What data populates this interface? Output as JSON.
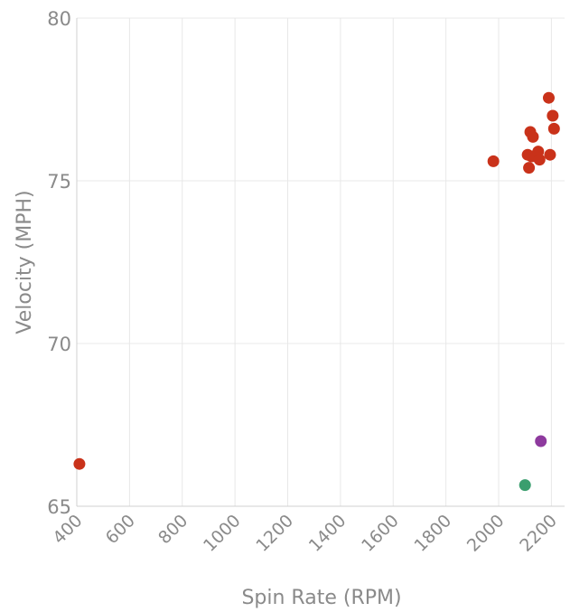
{
  "chart_data": {
    "type": "scatter",
    "xlabel": "Spin Rate (RPM)",
    "ylabel": "Velocity (MPH)",
    "xlim": [
      400,
      2250
    ],
    "ylim": [
      65,
      80
    ],
    "xticks": [
      400,
      600,
      800,
      1000,
      1200,
      1400,
      1600,
      1800,
      2000,
      2200
    ],
    "yticks": [
      65,
      70,
      75,
      80
    ],
    "grid": true,
    "points": [
      {
        "x": 410,
        "y": 66.3,
        "color": "#c9321a"
      },
      {
        "x": 1980,
        "y": 75.6,
        "color": "#c9321a"
      },
      {
        "x": 2110,
        "y": 75.8,
        "color": "#c9321a"
      },
      {
        "x": 2115,
        "y": 75.4,
        "color": "#c9321a"
      },
      {
        "x": 2120,
        "y": 76.5,
        "color": "#c9321a"
      },
      {
        "x": 2130,
        "y": 76.35,
        "color": "#c9321a"
      },
      {
        "x": 2125,
        "y": 75.75,
        "color": "#c9321a"
      },
      {
        "x": 2140,
        "y": 75.75,
        "color": "#c9321a"
      },
      {
        "x": 2150,
        "y": 75.9,
        "color": "#c9321a"
      },
      {
        "x": 2155,
        "y": 75.65,
        "color": "#c9321a"
      },
      {
        "x": 2195,
        "y": 75.8,
        "color": "#c9321a"
      },
      {
        "x": 2190,
        "y": 77.55,
        "color": "#c9321a"
      },
      {
        "x": 2205,
        "y": 77.0,
        "color": "#c9321a"
      },
      {
        "x": 2210,
        "y": 76.6,
        "color": "#c9321a"
      },
      {
        "x": 2160,
        "y": 67.0,
        "color": "#8e3a9e"
      },
      {
        "x": 2100,
        "y": 65.65,
        "color": "#3a9e6e"
      }
    ]
  }
}
